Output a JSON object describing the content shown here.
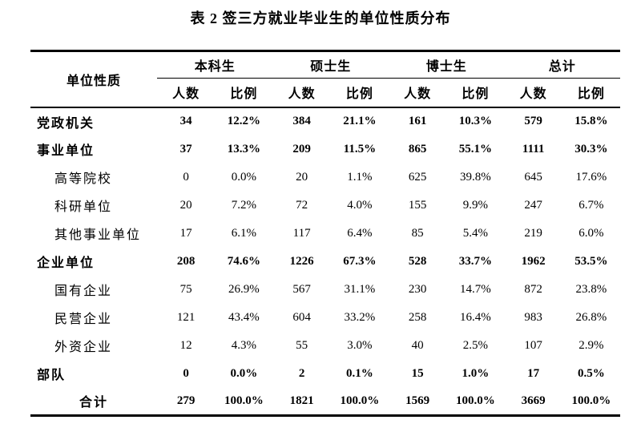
{
  "page": {
    "background_color": "#ffffff",
    "text_color": "#000000",
    "rule_color": "#000000"
  },
  "title": "表 2 签三方就业毕业生的单位性质分布",
  "table": {
    "corner_header": "单位性质",
    "group_headers": [
      "本科生",
      "硕士生",
      "博士生",
      "总计"
    ],
    "sub_headers": [
      "人数",
      "比例",
      "人数",
      "比例",
      "人数",
      "比例",
      "人数",
      "比例"
    ],
    "rows": [
      {
        "label": "党政机关",
        "level": "category",
        "values": [
          "34",
          "12.2%",
          "384",
          "21.1%",
          "161",
          "10.3%",
          "579",
          "15.8%"
        ]
      },
      {
        "label": "事业单位",
        "level": "category",
        "values": [
          "37",
          "13.3%",
          "209",
          "11.5%",
          "865",
          "55.1%",
          "1111",
          "30.3%"
        ]
      },
      {
        "label": "高等院校",
        "level": "sub",
        "values": [
          "0",
          "0.0%",
          "20",
          "1.1%",
          "625",
          "39.8%",
          "645",
          "17.6%"
        ]
      },
      {
        "label": "科研单位",
        "level": "sub",
        "values": [
          "20",
          "7.2%",
          "72",
          "4.0%",
          "155",
          "9.9%",
          "247",
          "6.7%"
        ]
      },
      {
        "label": "其他事业单位",
        "level": "sub",
        "values": [
          "17",
          "6.1%",
          "117",
          "6.4%",
          "85",
          "5.4%",
          "219",
          "6.0%"
        ]
      },
      {
        "label": "企业单位",
        "level": "category",
        "values": [
          "208",
          "74.6%",
          "1226",
          "67.3%",
          "528",
          "33.7%",
          "1962",
          "53.5%"
        ]
      },
      {
        "label": "国有企业",
        "level": "sub",
        "values": [
          "75",
          "26.9%",
          "567",
          "31.1%",
          "230",
          "14.7%",
          "872",
          "23.8%"
        ]
      },
      {
        "label": "民营企业",
        "level": "sub",
        "values": [
          "121",
          "43.4%",
          "604",
          "33.2%",
          "258",
          "16.4%",
          "983",
          "26.8%"
        ]
      },
      {
        "label": "外资企业",
        "level": "sub",
        "values": [
          "12",
          "4.3%",
          "55",
          "3.0%",
          "40",
          "2.5%",
          "107",
          "2.9%"
        ]
      },
      {
        "label": "部队",
        "level": "category",
        "values": [
          "0",
          "0.0%",
          "2",
          "0.1%",
          "15",
          "1.0%",
          "17",
          "0.5%"
        ]
      },
      {
        "label": "合计",
        "level": "total",
        "values": [
          "279",
          "100.0%",
          "1821",
          "100.0%",
          "1569",
          "100.0%",
          "3669",
          "100.0%"
        ]
      }
    ]
  }
}
